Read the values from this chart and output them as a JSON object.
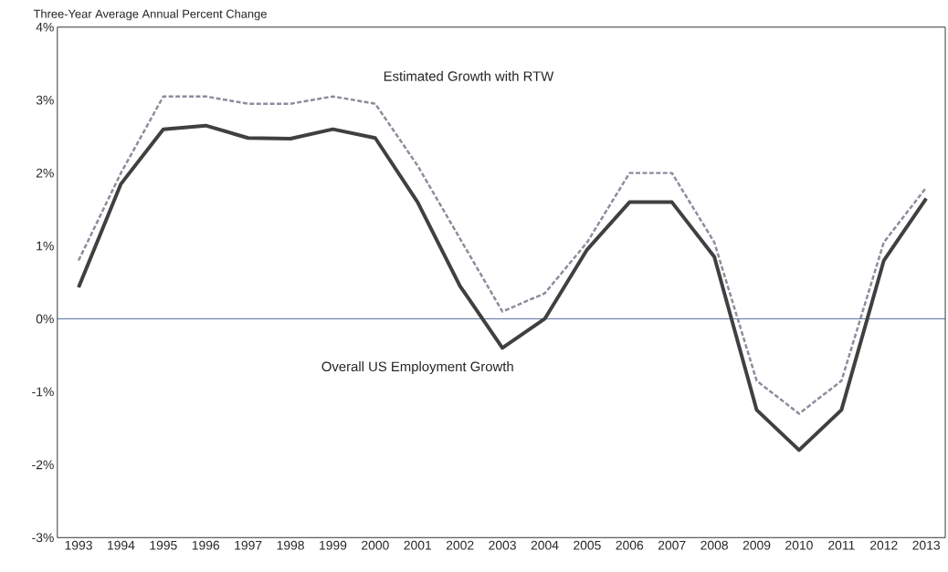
{
  "chart_data": {
    "type": "line",
    "title": "Three-Year Average Annual Percent Change",
    "categories": [
      "1993",
      "1994",
      "1995",
      "1996",
      "1997",
      "1998",
      "1999",
      "2000",
      "2001",
      "2002",
      "2003",
      "2004",
      "2005",
      "2006",
      "2007",
      "2008",
      "2009",
      "2010",
      "2011",
      "2012",
      "2013"
    ],
    "series": [
      {
        "name": "Estimated Growth with RTW",
        "color": "#8c8c9c",
        "line_style": "dashed",
        "values": [
          0.8,
          2.0,
          3.05,
          3.05,
          2.95,
          2.95,
          3.05,
          2.95,
          2.1,
          1.1,
          0.1,
          0.35,
          1.05,
          2.0,
          2.0,
          1.05,
          -0.85,
          -1.3,
          -0.85,
          1.05,
          1.8
        ]
      },
      {
        "name": "Overall US Employment Growth",
        "color": "#404040",
        "line_style": "solid",
        "values": [
          0.43,
          1.85,
          2.6,
          2.65,
          2.48,
          2.47,
          2.6,
          2.48,
          1.6,
          0.45,
          -0.4,
          0.0,
          0.95,
          1.6,
          1.6,
          0.85,
          -1.25,
          -1.8,
          -1.25,
          0.8,
          1.65
        ]
      }
    ],
    "ylim": [
      -3,
      4
    ],
    "yticks": [
      {
        "value": -3,
        "label": "-3%"
      },
      {
        "value": -2,
        "label": "-2%"
      },
      {
        "value": -1,
        "label": "-1%"
      },
      {
        "value": 0,
        "label": "0%"
      },
      {
        "value": 1,
        "label": "1%"
      },
      {
        "value": 2,
        "label": "2%"
      },
      {
        "value": 3,
        "label": "3%"
      },
      {
        "value": 4,
        "label": "4%"
      }
    ],
    "ref_lines": [
      {
        "axis": "y",
        "value": 0,
        "color": "#2f4f8f"
      }
    ],
    "marker": "none"
  }
}
